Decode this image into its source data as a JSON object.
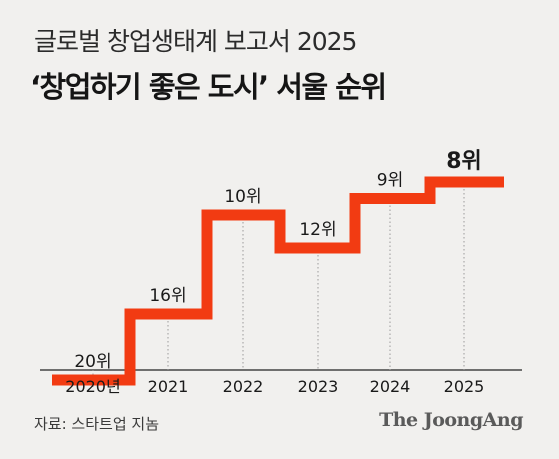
{
  "subtitle": "글로벌 창업생태계 보고서 2025",
  "title": "‘창업하기 좋은 도시’ 서울 순위",
  "source": "자료: 스타트업 지놈",
  "brand": "The JoongAng",
  "colors": {
    "line": "#f23b12",
    "axis": "#222222",
    "guide": "#9a9a9a",
    "text": "#1a1a1a"
  },
  "chart_data": {
    "type": "line",
    "step": true,
    "title": "‘창업하기 좋은 도시’ 서울 순위",
    "x_tick_labels": [
      "2020년",
      "2021",
      "2022",
      "2023",
      "2024",
      "2025"
    ],
    "x": [
      2020,
      2021,
      2022,
      2023,
      2024,
      2025
    ],
    "y": [
      20,
      16,
      10,
      12,
      9,
      8
    ],
    "data_labels": [
      "20위",
      "16위",
      "10위",
      "12위",
      "9위",
      "8위"
    ],
    "y_inverted": true,
    "highlight_last": true,
    "grid": false
  }
}
